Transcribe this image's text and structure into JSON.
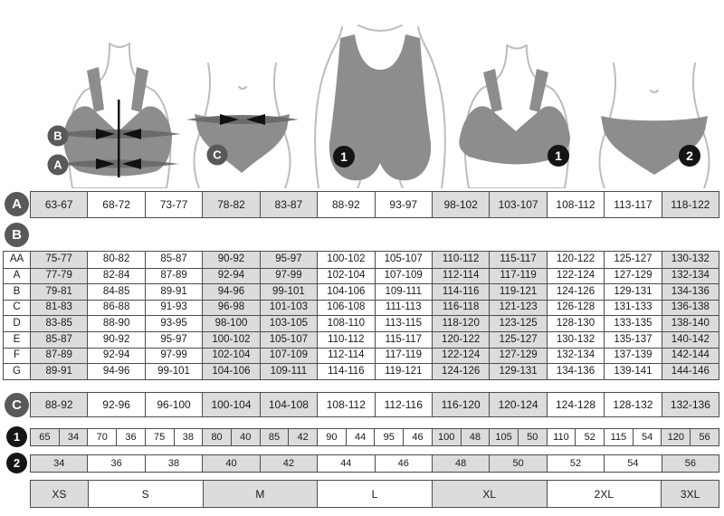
{
  "chart_data": {
    "type": "table",
    "underbust_row": {
      "badge": "A",
      "values": [
        "63-67",
        "68-72",
        "73-77",
        "78-82",
        "83-87",
        "88-92",
        "93-97",
        "98-102",
        "103-107",
        "108-112",
        "113-117",
        "118-122"
      ]
    },
    "bust_table": {
      "badge": "B",
      "rows": [
        {
          "cup": "AA",
          "values": [
            "75-77",
            "80-82",
            "85-87",
            "90-92",
            "95-97",
            "100-102",
            "105-107",
            "110-112",
            "115-117",
            "120-122",
            "125-127",
            "130-132"
          ]
        },
        {
          "cup": "A",
          "values": [
            "77-79",
            "82-84",
            "87-89",
            "92-94",
            "97-99",
            "102-104",
            "107-109",
            "112-114",
            "117-119",
            "122-124",
            "127-129",
            "132-134"
          ]
        },
        {
          "cup": "B",
          "values": [
            "79-81",
            "84-85",
            "89-91",
            "94-96",
            "99-101",
            "104-106",
            "109-111",
            "114-116",
            "119-121",
            "124-126",
            "129-131",
            "134-136"
          ]
        },
        {
          "cup": "C",
          "values": [
            "81-83",
            "86-88",
            "91-93",
            "96-98",
            "101-103",
            "106-108",
            "111-113",
            "116-118",
            "121-123",
            "126-128",
            "131-133",
            "136-138"
          ]
        },
        {
          "cup": "D",
          "values": [
            "83-85",
            "88-90",
            "93-95",
            "98-100",
            "103-105",
            "108-110",
            "113-115",
            "118-120",
            "123-125",
            "128-130",
            "133-135",
            "138-140"
          ]
        },
        {
          "cup": "E",
          "values": [
            "85-87",
            "90-92",
            "95-97",
            "100-102",
            "105-107",
            "110-112",
            "115-117",
            "120-122",
            "125-127",
            "130-132",
            "135-137",
            "140-142"
          ]
        },
        {
          "cup": "F",
          "values": [
            "87-89",
            "92-94",
            "97-99",
            "102-104",
            "107-109",
            "112-114",
            "117-119",
            "122-124",
            "127-129",
            "132-134",
            "137-139",
            "142-144"
          ]
        },
        {
          "cup": "G",
          "values": [
            "89-91",
            "94-96",
            "99-101",
            "104-106",
            "109-111",
            "114-116",
            "119-121",
            "124-126",
            "129-131",
            "134-136",
            "139-141",
            "144-146"
          ]
        }
      ]
    },
    "hip_row": {
      "badge": "C",
      "values": [
        "88-92",
        "92-96",
        "96-100",
        "100-104",
        "104-108",
        "108-112",
        "112-116",
        "116-120",
        "120-124",
        "124-128",
        "128-132",
        "132-136"
      ]
    },
    "bra_size_row": {
      "badge": "1",
      "pairs": [
        [
          "65",
          "34"
        ],
        [
          "70",
          "36"
        ],
        [
          "75",
          "38"
        ],
        [
          "80",
          "40"
        ],
        [
          "85",
          "42"
        ],
        [
          "90",
          "44"
        ],
        [
          "95",
          "46"
        ],
        [
          "100",
          "48"
        ],
        [
          "105",
          "50"
        ],
        [
          "110",
          "52"
        ],
        [
          "115",
          "54"
        ],
        [
          "120",
          "56"
        ]
      ]
    },
    "panty_size_row": {
      "badge": "2",
      "values": [
        "34",
        "36",
        "38",
        "40",
        "42",
        "44",
        "46",
        "48",
        "50",
        "52",
        "54",
        "56"
      ]
    },
    "size_groups": [
      {
        "label": "XS",
        "span": 1
      },
      {
        "label": "S",
        "span": 2
      },
      {
        "label": "M",
        "span": 2
      },
      {
        "label": "L",
        "span": 2
      },
      {
        "label": "XL",
        "span": 2
      },
      {
        "label": "2XL",
        "span": 2
      },
      {
        "label": "3XL",
        "span": 1
      }
    ]
  },
  "colors": {
    "cell_gray": "#dcdcdc",
    "cell_white": "#ffffff",
    "grid_border": "#4d4d4d",
    "badge_gray": "#58595b",
    "badge_black": "#161616",
    "garment_gray": "#8d8d8d",
    "body_outline": "#bdbdbd",
    "measure_band": "#686868",
    "text": "#1a1a1a"
  }
}
